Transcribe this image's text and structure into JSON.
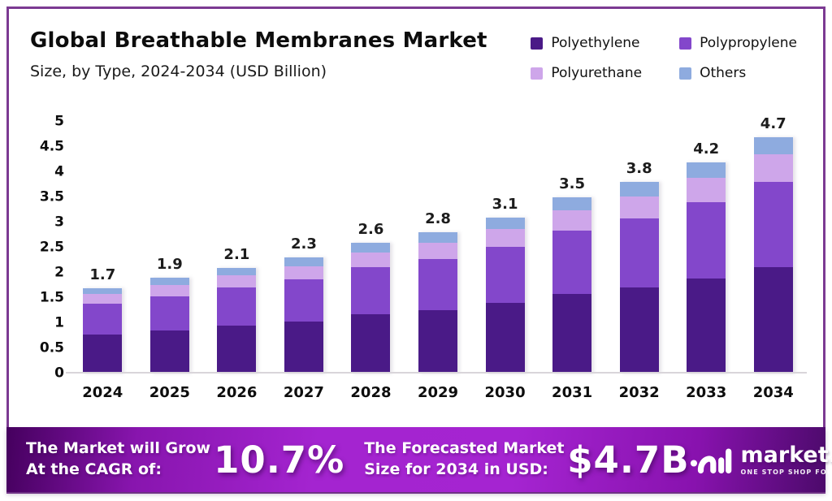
{
  "header": {
    "title": "Global Breathable Membranes Market",
    "subtitle": "Size, by Type, 2024-2034 (USD Billion)"
  },
  "legend": {
    "items": [
      {
        "label": "Polyethylene",
        "color": "#4A1A87"
      },
      {
        "label": "Polypropylene",
        "color": "#8347CB"
      },
      {
        "label": "Polyurethane",
        "color": "#CEA6EA"
      },
      {
        "label": "Others",
        "color": "#8EABDF"
      }
    ]
  },
  "chart_data": {
    "type": "bar",
    "stacked": true,
    "title": "Global Breathable Membranes Market",
    "subtitle": "Size, by Type, 2024-2034 (USD Billion)",
    "xlabel": "",
    "ylabel": "",
    "categories": [
      "2024",
      "2025",
      "2026",
      "2027",
      "2028",
      "2029",
      "2030",
      "2031",
      "2032",
      "2033",
      "2034"
    ],
    "totals": [
      1.7,
      1.9,
      2.1,
      2.3,
      2.6,
      2.8,
      3.1,
      3.5,
      3.8,
      4.2,
      4.7
    ],
    "total_labels": [
      "1.7",
      "1.9",
      "2.1",
      "2.3",
      "2.6",
      "2.8",
      "3.1",
      "3.5",
      "3.8",
      "4.2",
      "4.7"
    ],
    "series": [
      {
        "name": "Polyethylene",
        "color": "#4A1A87",
        "values": [
          0.77,
          0.86,
          0.95,
          1.04,
          1.17,
          1.26,
          1.4,
          1.58,
          1.71,
          1.89,
          2.12
        ]
      },
      {
        "name": "Polypropylene",
        "color": "#8347CB",
        "values": [
          0.61,
          0.68,
          0.76,
          0.83,
          0.94,
          1.01,
          1.12,
          1.26,
          1.37,
          1.51,
          1.69
        ]
      },
      {
        "name": "Polyurethane",
        "color": "#CEA6EA",
        "values": [
          0.2,
          0.22,
          0.24,
          0.26,
          0.3,
          0.32,
          0.35,
          0.4,
          0.44,
          0.48,
          0.54
        ]
      },
      {
        "name": "Others",
        "color": "#8EABDF",
        "values": [
          0.12,
          0.14,
          0.15,
          0.17,
          0.19,
          0.21,
          0.23,
          0.26,
          0.28,
          0.32,
          0.35
        ]
      }
    ],
    "ylim": [
      0,
      5
    ],
    "y_ticks": [
      0,
      0.5,
      1,
      1.5,
      2,
      2.5,
      3,
      3.5,
      4,
      4.5,
      5
    ],
    "grid": false,
    "legend_position": "top-right"
  },
  "footer": {
    "cagr_label_line1": "The Market will Grow",
    "cagr_label_line2": "At the CAGR of:",
    "cagr_value": "10.7%",
    "forecast_label_line1": "The Forecasted Market",
    "forecast_label_line2": "Size for 2034 in USD:",
    "forecast_value": "$4.7B",
    "brand": "market.us",
    "brand_tagline": "ONE STOP SHOP FOR THE REPORTS"
  },
  "colors": {
    "card_border": "#7C3A92",
    "footer_gradient_left": "#45005E",
    "footer_gradient_mid": "#A424D0",
    "footer_gradient_right": "#4C0A6B",
    "axis_line": "#D9D5DA"
  }
}
